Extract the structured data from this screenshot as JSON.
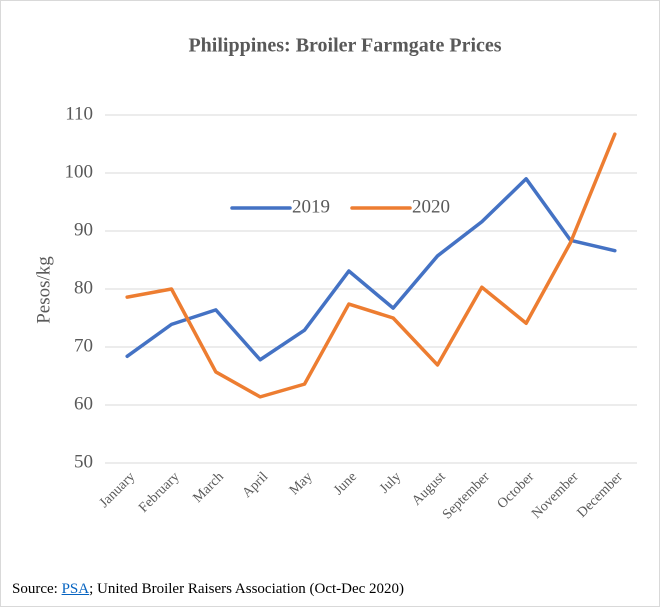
{
  "chart_data": {
    "type": "line",
    "title": "Philippines: Broiler Farmgate Prices",
    "y_label": "Pesos/kg",
    "categories": [
      "January",
      "February",
      "March",
      "April",
      "May",
      "June",
      "July",
      "August",
      "September",
      "October",
      "November",
      "December"
    ],
    "series": [
      {
        "name": "2019",
        "color": "#4472c4",
        "values": [
          68.4,
          73.9,
          76.4,
          67.8,
          72.9,
          83.1,
          76.7,
          85.7,
          91.6,
          99.0,
          88.4,
          86.6
        ]
      },
      {
        "name": "2020",
        "color": "#ed7d31",
        "values": [
          78.6,
          80.0,
          65.7,
          61.4,
          63.6,
          77.4,
          75.0,
          66.9,
          80.3,
          74.1,
          88.0,
          106.7
        ]
      }
    ],
    "ylim": [
      50,
      110
    ],
    "yticks": [
      50,
      60,
      70,
      80,
      90,
      100,
      110
    ],
    "grid": true,
    "legend": "top",
    "source": {
      "prefix": "Source: ",
      "link": "PSA",
      "rest": "; United Broiler Raisers Association (Oct-Dec 2020)"
    }
  }
}
